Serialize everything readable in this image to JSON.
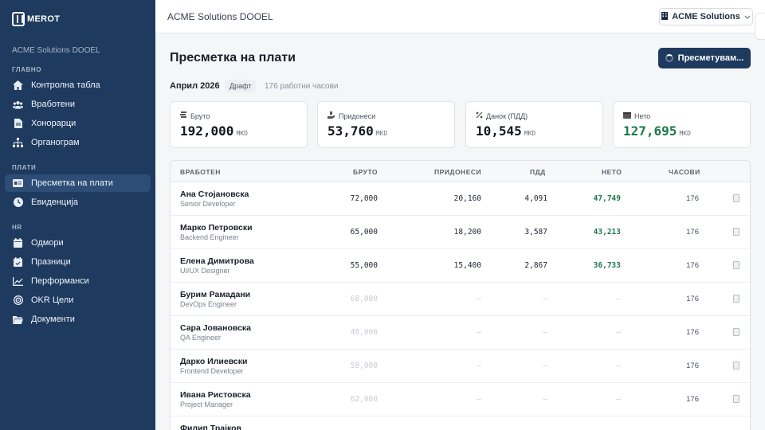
{
  "sidebar": {
    "logo": "MEROT",
    "org": "ACME Solutions DOOEL",
    "sections": {
      "main": "ГЛАВНО",
      "payroll": "ПЛАТИ",
      "hr": "HR"
    },
    "main_items": [
      {
        "label": "Контролна табла",
        "icon": "home-icon"
      },
      {
        "label": "Вработени",
        "icon": "users-icon"
      },
      {
        "label": "Хонорарци",
        "icon": "file-icon"
      },
      {
        "label": "Органограм",
        "icon": "org-chart-icon"
      }
    ],
    "payroll_items": [
      {
        "label": "Пресметка на плати",
        "icon": "id-card-icon",
        "active": true
      },
      {
        "label": "Евиденција",
        "icon": "clock-icon"
      }
    ],
    "hr_items": [
      {
        "label": "Одмори",
        "icon": "calendar-icon"
      },
      {
        "label": "Празници",
        "icon": "calendar-check-icon"
      },
      {
        "label": "Перформанси",
        "icon": "chart-line-icon"
      },
      {
        "label": "OKR Цели",
        "icon": "target-icon"
      },
      {
        "label": "Документи",
        "icon": "folder-icon"
      }
    ]
  },
  "topbar": {
    "title": "ACME Solutions DOOEL",
    "company": "ACME Solutions"
  },
  "main": {
    "title": "Пресметка на плати",
    "calc_button": "Пресметувам...",
    "period": "Април 2026",
    "status_badge": "Драфт",
    "hours_note": "176 работни часови"
  },
  "cards": [
    {
      "label": "Бруто",
      "value": "192,000",
      "currency": "MKD"
    },
    {
      "label": "Придонеси",
      "value": "53,760",
      "currency": "MKD"
    },
    {
      "label": "Данок (ПДД)",
      "value": "10,545",
      "currency": "MKD"
    },
    {
      "label": "Нето",
      "value": "127,695",
      "currency": "MKD"
    }
  ],
  "table": {
    "headers": {
      "employee": "ВРАБОТЕН",
      "gross": "БРУТО",
      "contrib": "ПРИДОНЕСИ",
      "tax": "ПДД",
      "net": "НЕТО",
      "hours": "ЧАСОВИ"
    },
    "rows": [
      {
        "name": "Ана Стојановска",
        "role": "Senior Developer",
        "gross": "72,000",
        "contrib": "20,160",
        "tax": "4,091",
        "net": "47,749",
        "hours": "176",
        "calculated": true
      },
      {
        "name": "Марко Петровски",
        "role": "Backend Engineer",
        "gross": "65,000",
        "contrib": "18,200",
        "tax": "3,587",
        "net": "43,213",
        "hours": "176",
        "calculated": true
      },
      {
        "name": "Елена Димитрова",
        "role": "UI/UX Designer",
        "gross": "55,000",
        "contrib": "15,400",
        "tax": "2,867",
        "net": "36,733",
        "hours": "176",
        "calculated": true
      },
      {
        "name": "Бурим Рамадани",
        "role": "DevOps Engineer",
        "gross": "68,000",
        "contrib": "—",
        "tax": "—",
        "net": "—",
        "hours": "176",
        "calculated": false
      },
      {
        "name": "Сара Јовановска",
        "role": "QA Engineer",
        "gross": "48,000",
        "contrib": "—",
        "tax": "—",
        "net": "—",
        "hours": "176",
        "calculated": false
      },
      {
        "name": "Дарко Илиевски",
        "role": "Frontend Developer",
        "gross": "58,000",
        "contrib": "—",
        "tax": "—",
        "net": "—",
        "hours": "176",
        "calculated": false
      },
      {
        "name": "Ивана Ристовска",
        "role": "Project Manager",
        "gross": "62,000",
        "contrib": "—",
        "tax": "—",
        "net": "—",
        "hours": "176",
        "calculated": false
      },
      {
        "name": "Филип Трајков",
        "role": "",
        "gross": "",
        "contrib": "",
        "tax": "",
        "net": "",
        "hours": "",
        "calculated": false
      }
    ]
  },
  "colors": {
    "sidebar": "#1e3a5f",
    "active_item": "#2d4d76",
    "net_green": "#1d7a4a",
    "primary_button": "#1e3a5f"
  }
}
